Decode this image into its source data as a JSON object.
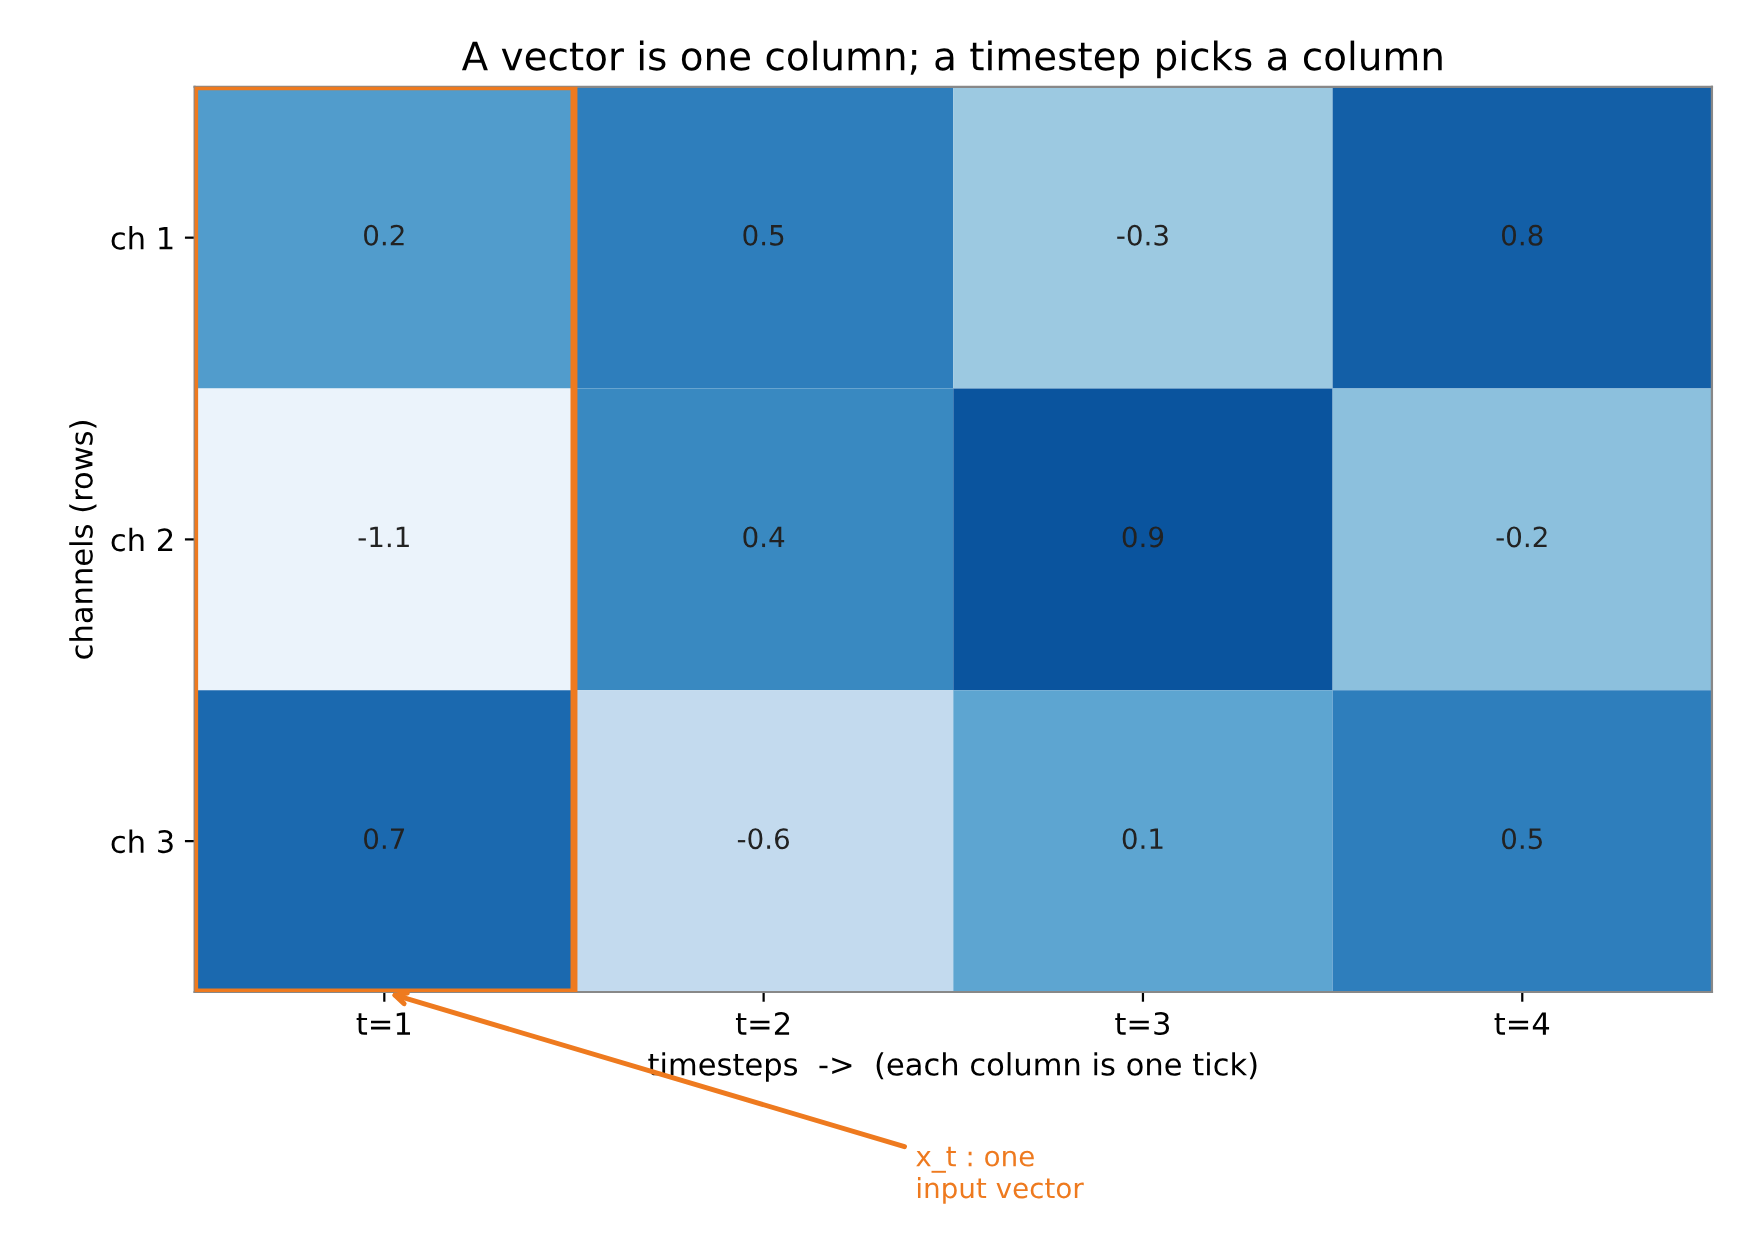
{
  "chart_data": {
    "type": "heatmap",
    "title": "A vector is one column; a timestep picks a column",
    "xlabel": "timesteps  ->  (each column is one tick)",
    "ylabel": "channels (rows)",
    "categories": [
      "t=1",
      "t=2",
      "t=3",
      "t=4"
    ],
    "y_categories": [
      "ch 1",
      "ch 2",
      "ch 3"
    ],
    "cells": [
      [
        0.2,
        0.5,
        -0.3,
        0.8
      ],
      [
        -1.1,
        0.4,
        0.9,
        -0.2
      ],
      [
        0.7,
        -0.6,
        0.1,
        0.5
      ]
    ],
    "data_labels": true,
    "grid": false,
    "annotations": [
      "x_t : one\ninput vector"
    ]
  }
}
